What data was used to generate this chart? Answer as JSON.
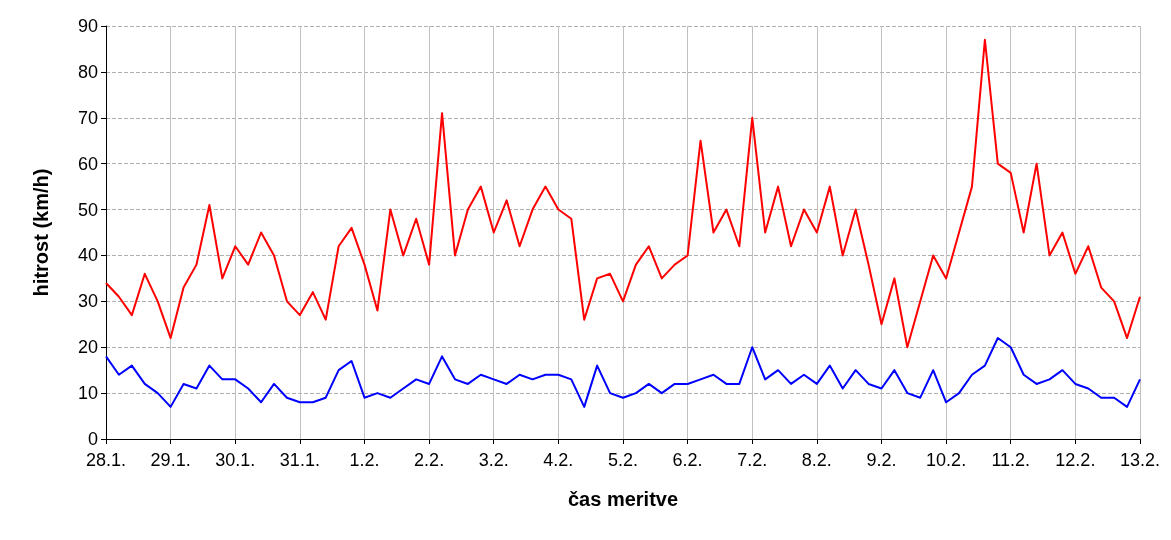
{
  "chart_data": {
    "type": "line",
    "xlabel": "čas meritve",
    "ylabel": "hitrost (km/h)",
    "ylim": [
      0,
      90
    ],
    "categories": [
      "28.1.",
      null,
      null,
      null,
      null,
      "29.1.",
      null,
      null,
      null,
      null,
      "30.1.",
      null,
      null,
      null,
      null,
      "31.1.",
      null,
      null,
      null,
      null,
      "1.2.",
      null,
      null,
      null,
      null,
      "2.2.",
      null,
      null,
      null,
      null,
      "3.2.",
      null,
      null,
      null,
      null,
      "4.2.",
      null,
      null,
      null,
      null,
      "5.2.",
      null,
      null,
      null,
      null,
      "6.2.",
      null,
      null,
      null,
      null,
      "7.2.",
      null,
      null,
      null,
      null,
      "8.2.",
      null,
      null,
      null,
      null,
      "9.2.",
      null,
      null,
      null,
      null,
      "10.2.",
      null,
      null,
      null,
      null,
      "11.2.",
      null,
      null,
      null,
      null,
      "12.2.",
      null,
      null,
      null,
      null,
      "13.2."
    ],
    "yticks": [
      0,
      10,
      20,
      30,
      40,
      50,
      60,
      70,
      80,
      90
    ],
    "grid": true,
    "marker": "none",
    "line_style": "solid",
    "series": [
      {
        "color": "#ff0000",
        "values": [
          34,
          31,
          27,
          36,
          30,
          22,
          33,
          38,
          51,
          35,
          42,
          38,
          45,
          40,
          30,
          27,
          32,
          26,
          42,
          46,
          38,
          28,
          50,
          40,
          48,
          38,
          71,
          40,
          50,
          55,
          45,
          52,
          42,
          50,
          55,
          50,
          48,
          26,
          35,
          36,
          30,
          38,
          42,
          35,
          38,
          40,
          65,
          45,
          50,
          42,
          70,
          45,
          55,
          42,
          50,
          45,
          55,
          40,
          50,
          38,
          25,
          35,
          20,
          30,
          40,
          35,
          45,
          55,
          87,
          60,
          58,
          45,
          60,
          40,
          45,
          36,
          42,
          33,
          30,
          22,
          31
        ]
      },
      {
        "color": "#0000ff",
        "values": [
          18,
          14,
          16,
          12,
          10,
          7,
          12,
          11,
          16,
          13,
          13,
          11,
          8,
          12,
          9,
          8,
          8,
          9,
          15,
          17,
          9,
          10,
          9,
          11,
          13,
          12,
          18,
          13,
          12,
          14,
          13,
          12,
          14,
          13,
          14,
          14,
          13,
          7,
          16,
          10,
          9,
          10,
          12,
          10,
          12,
          12,
          13,
          14,
          12,
          12,
          20,
          13,
          15,
          12,
          14,
          12,
          16,
          11,
          15,
          12,
          11,
          15,
          10,
          9,
          15,
          8,
          10,
          14,
          16,
          22,
          20,
          14,
          12,
          13,
          15,
          12,
          11,
          9,
          9,
          7,
          13
        ]
      }
    ]
  }
}
